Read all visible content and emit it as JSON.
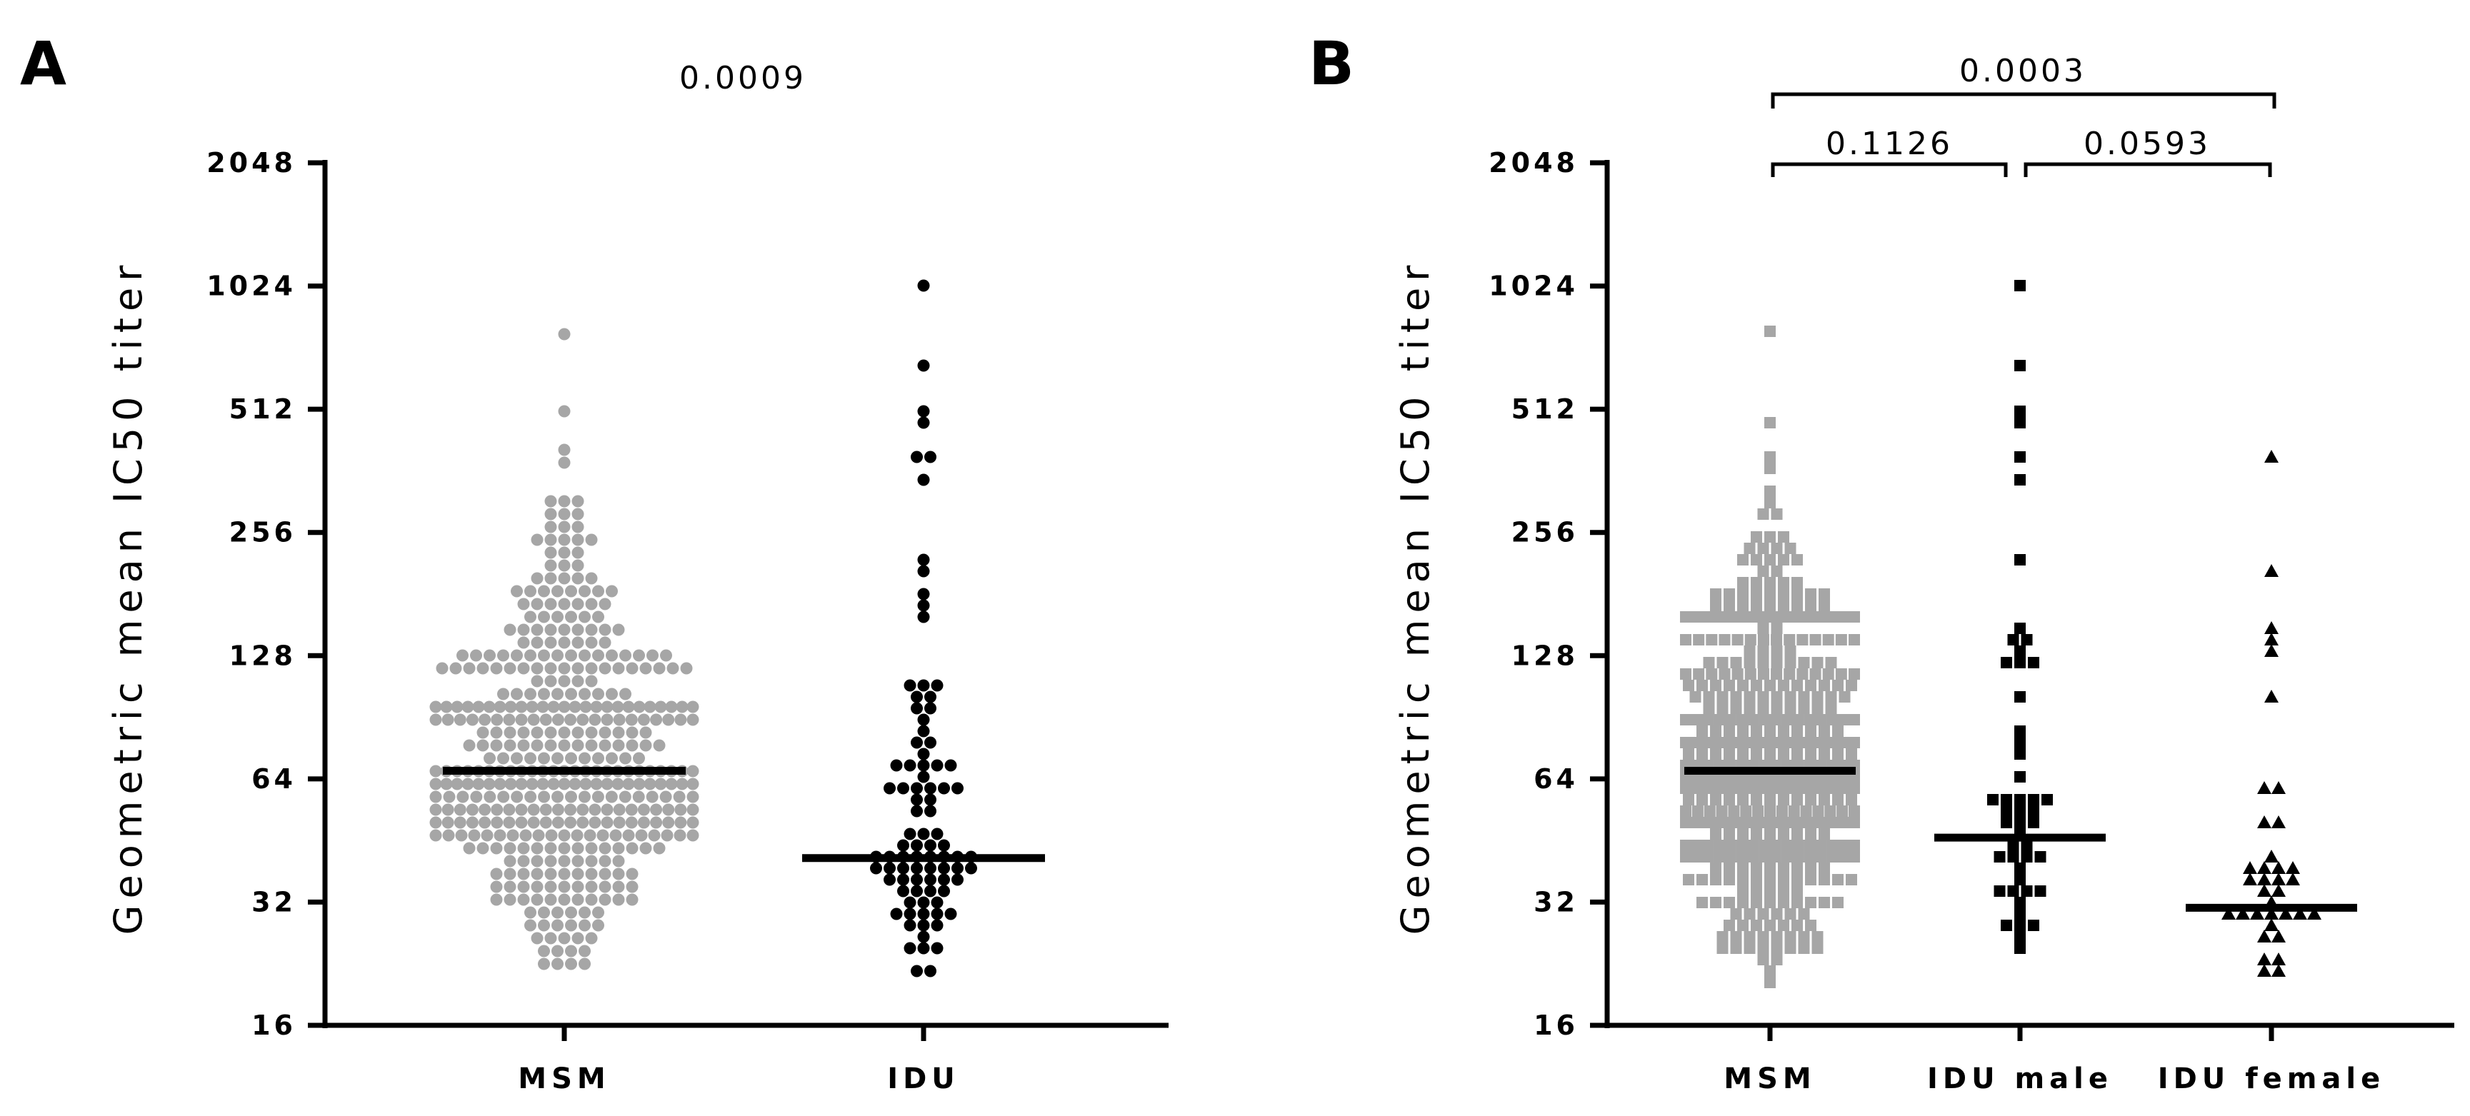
{
  "chart_data": [
    {
      "panel_label": "A",
      "type": "scatter",
      "ylabel": "Geometric mean IC50 titer",
      "yscale": "log2",
      "ylim": [
        16,
        2048
      ],
      "yticks": [
        "16",
        "32",
        "64",
        "128",
        "256",
        "512",
        "1024",
        "2048"
      ],
      "categories": [
        "MSM",
        "IDU"
      ],
      "series": [
        {
          "name": "MSM",
          "color": "#a6a6a6",
          "marker": "circle",
          "median": 67,
          "n": 420,
          "min": 20,
          "max": 800,
          "outliers": [
            800,
            490,
            400,
            370
          ]
        },
        {
          "name": "IDU",
          "color": "#000000",
          "marker": "circle",
          "median": 41,
          "n": 90,
          "min": 20,
          "max": 1000,
          "outliers": [
            1000,
            660,
            510,
            470,
            380,
            380,
            350,
            220,
            210,
            185,
            165,
            160
          ]
        }
      ],
      "comparisons": [
        {
          "groups": [
            "MSM",
            "IDU"
          ],
          "p": "0.0009"
        }
      ]
    },
    {
      "panel_label": "B",
      "type": "scatter",
      "ylabel": "Geometric mean IC50 titer",
      "yscale": "log2",
      "ylim": [
        16,
        2048
      ],
      "yticks": [
        "16",
        "32",
        "64",
        "128",
        "256",
        "512",
        "1024",
        "2048"
      ],
      "categories": [
        "MSM",
        "IDU male",
        "IDU female"
      ],
      "series": [
        {
          "name": "MSM",
          "color": "#a6a6a6",
          "marker": "square",
          "median": 67,
          "n": 420,
          "min": 20,
          "max": 800,
          "outliers": [
            800,
            490,
            400,
            370
          ]
        },
        {
          "name": "IDU male",
          "color": "#000000",
          "marker": "square",
          "median": 46,
          "n": 50,
          "min": 20,
          "max": 1000,
          "outliers": [
            1000,
            660,
            510,
            470,
            380,
            350,
            220
          ]
        },
        {
          "name": "IDU female",
          "color": "#000000",
          "marker": "triangle",
          "median": 31,
          "n": 36,
          "min": 20,
          "max": 380,
          "outliers": [
            380,
            210,
            150,
            140,
            130,
            100
          ]
        }
      ],
      "comparisons": [
        {
          "groups": [
            "MSM",
            "IDU male"
          ],
          "p": "0.1126"
        },
        {
          "groups": [
            "IDU male",
            "IDU female"
          ],
          "p": "0.0593"
        },
        {
          "groups": [
            "MSM",
            "IDU female"
          ],
          "p": "0.0003"
        }
      ]
    }
  ]
}
